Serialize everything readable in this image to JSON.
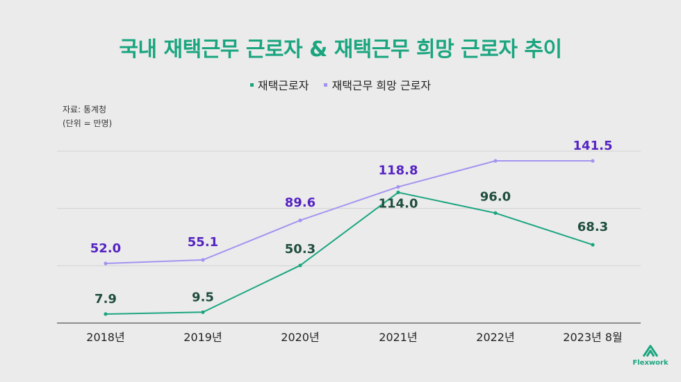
{
  "title": "국내 재택근무 근로자 & 재택근무 희망 근로자 추이",
  "source_line": "자료: 통계청",
  "unit_line": "(단위 = 만명)",
  "brand": "Flexwork",
  "chart_data": {
    "type": "line",
    "title": "국내 재택근무 근로자 & 재택근무 희망 근로자 추이",
    "categories": [
      "2018년",
      "2019년",
      "2020년",
      "2021년",
      "2022년",
      "2023년 8월"
    ],
    "series": [
      {
        "name": "재택근로자",
        "color": "#1aa57f",
        "label_color": "#1f4d3e",
        "values": [
          7.9,
          9.5,
          50.3,
          114.0,
          96.0,
          68.3
        ],
        "labels": [
          "7.9",
          "9.5",
          "50.3",
          "114.0",
          "96.0",
          "68.3"
        ]
      },
      {
        "name": "재택근무 희망 근로자",
        "color": "#a393f0",
        "label_color": "#5523c2",
        "values": [
          52.0,
          55.1,
          89.6,
          118.8,
          141.5,
          141.5
        ],
        "labels": [
          "52.0",
          "55.1",
          "89.6",
          "118.8",
          "",
          "141.5"
        ]
      }
    ],
    "ylim": [
      0,
      150
    ],
    "grid": true,
    "legend": "top-center"
  }
}
